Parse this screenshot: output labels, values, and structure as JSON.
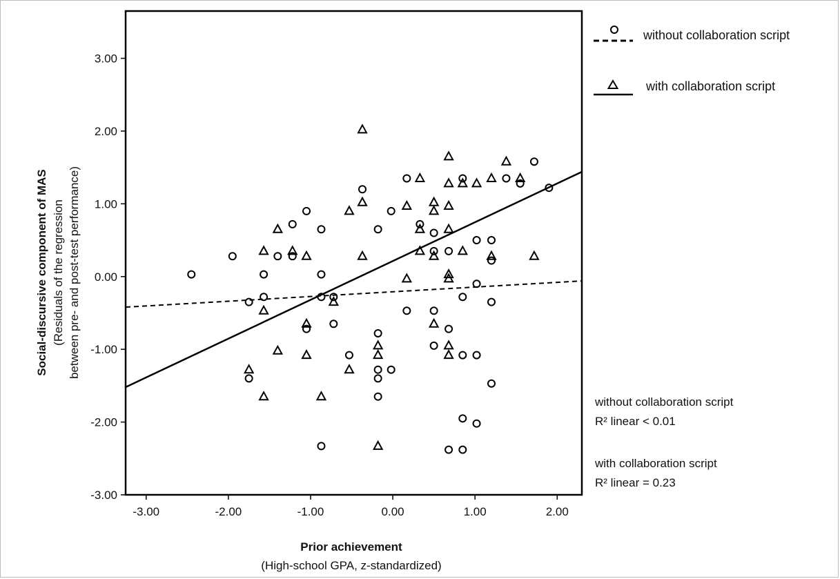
{
  "chart_data": {
    "type": "scatter",
    "xlabel": "Prior achievement",
    "xlabel_sub": "(High-school GPA, z-standardized)",
    "ylabel": "Social-discursive component of MAS",
    "ylabel_sub1": "(Residuals of the regression",
    "ylabel_sub2": "between pre- and post-test performance)",
    "xlim": [
      -3.25,
      2.3
    ],
    "ylim": [
      -3.0,
      3.65
    ],
    "x_ticks": [
      {
        "value": -3.0,
        "label": "-3.00"
      },
      {
        "value": -2.0,
        "label": "-2.00"
      },
      {
        "value": -1.0,
        "label": "-1.00"
      },
      {
        "value": 0.0,
        "label": "0.00"
      },
      {
        "value": 1.0,
        "label": "1.00"
      },
      {
        "value": 2.0,
        "label": "2.00"
      }
    ],
    "y_ticks": [
      {
        "value": -3.0,
        "label": "-3.00"
      },
      {
        "value": -2.0,
        "label": "-2.00"
      },
      {
        "value": -1.0,
        "label": "-1.00"
      },
      {
        "value": 0.0,
        "label": "0.00"
      },
      {
        "value": 1.0,
        "label": "1.00"
      },
      {
        "value": 2.0,
        "label": "2.00"
      },
      {
        "value": 3.0,
        "label": "3.00"
      }
    ],
    "grid": false,
    "legend_placement": "top-right outside",
    "series": [
      {
        "name": "without collaboration script",
        "marker": "circle",
        "line_style": "dashed",
        "fit": {
          "x0": -3.25,
          "y0": -0.42,
          "x1": 2.3,
          "y1": -0.06
        },
        "r2_label": "R² linear < 0.01",
        "points": [
          {
            "x": -2.45,
            "y": 0.03
          },
          {
            "x": -1.95,
            "y": 0.28
          },
          {
            "x": -1.75,
            "y": -0.35
          },
          {
            "x": -1.75,
            "y": -1.4
          },
          {
            "x": -1.57,
            "y": 0.03
          },
          {
            "x": -1.57,
            "y": -0.28
          },
          {
            "x": -1.4,
            "y": 0.28
          },
          {
            "x": -1.22,
            "y": 0.72
          },
          {
            "x": -1.22,
            "y": 0.28
          },
          {
            "x": -1.05,
            "y": 0.9
          },
          {
            "x": -1.05,
            "y": -0.72
          },
          {
            "x": -0.87,
            "y": 0.65
          },
          {
            "x": -0.87,
            "y": 0.03
          },
          {
            "x": -0.87,
            "y": -0.28
          },
          {
            "x": -0.87,
            "y": -2.33
          },
          {
            "x": -0.72,
            "y": -0.28
          },
          {
            "x": -0.72,
            "y": -0.65
          },
          {
            "x": -0.53,
            "y": -1.08
          },
          {
            "x": -0.37,
            "y": 1.2
          },
          {
            "x": -0.18,
            "y": 0.65
          },
          {
            "x": -0.18,
            "y": -0.78
          },
          {
            "x": -0.18,
            "y": -1.28
          },
          {
            "x": -0.18,
            "y": -1.4
          },
          {
            "x": -0.18,
            "y": -1.65
          },
          {
            "x": -0.02,
            "y": 0.9
          },
          {
            "x": -0.02,
            "y": -1.28
          },
          {
            "x": 0.17,
            "y": 1.35
          },
          {
            "x": 0.17,
            "y": -0.47
          },
          {
            "x": 0.33,
            "y": 0.72
          },
          {
            "x": 0.5,
            "y": 0.6
          },
          {
            "x": 0.5,
            "y": 0.35
          },
          {
            "x": 0.5,
            "y": -0.47
          },
          {
            "x": 0.5,
            "y": -0.95
          },
          {
            "x": 0.68,
            "y": 0.35
          },
          {
            "x": 0.68,
            "y": -0.72
          },
          {
            "x": 0.68,
            "y": -2.38
          },
          {
            "x": 0.85,
            "y": 1.35
          },
          {
            "x": 0.85,
            "y": -0.28
          },
          {
            "x": 0.85,
            "y": -1.08
          },
          {
            "x": 0.85,
            "y": -1.95
          },
          {
            "x": 0.85,
            "y": -2.38
          },
          {
            "x": 1.02,
            "y": 0.5
          },
          {
            "x": 1.02,
            "y": -0.1
          },
          {
            "x": 1.02,
            "y": -1.08
          },
          {
            "x": 1.02,
            "y": -2.02
          },
          {
            "x": 1.2,
            "y": 0.5
          },
          {
            "x": 1.2,
            "y": 0.22
          },
          {
            "x": 1.2,
            "y": -0.35
          },
          {
            "x": 1.2,
            "y": -1.47
          },
          {
            "x": 1.38,
            "y": 1.35
          },
          {
            "x": 1.55,
            "y": 1.28
          },
          {
            "x": 1.72,
            "y": 1.58
          },
          {
            "x": 1.9,
            "y": 1.22
          }
        ]
      },
      {
        "name": "with collaboration script",
        "marker": "triangle",
        "line_style": "solid",
        "fit": {
          "x0": -3.25,
          "y0": -1.52,
          "x1": 2.3,
          "y1": 1.44
        },
        "r2_label": "R² linear = 0.23",
        "points": [
          {
            "x": -1.75,
            "y": -1.28
          },
          {
            "x": -1.57,
            "y": 0.35
          },
          {
            "x": -1.57,
            "y": -0.47
          },
          {
            "x": -1.57,
            "y": -1.65
          },
          {
            "x": -1.4,
            "y": 0.65
          },
          {
            "x": -1.4,
            "y": -1.02
          },
          {
            "x": -1.22,
            "y": 0.35
          },
          {
            "x": -1.05,
            "y": 0.28
          },
          {
            "x": -1.05,
            "y": -0.65
          },
          {
            "x": -1.05,
            "y": -1.08
          },
          {
            "x": -0.87,
            "y": -1.65
          },
          {
            "x": -0.72,
            "y": -0.35
          },
          {
            "x": -0.53,
            "y": 0.9
          },
          {
            "x": -0.53,
            "y": -1.28
          },
          {
            "x": -0.37,
            "y": 2.02
          },
          {
            "x": -0.37,
            "y": 1.02
          },
          {
            "x": -0.37,
            "y": 0.28
          },
          {
            "x": -0.18,
            "y": -0.95
          },
          {
            "x": -0.18,
            "y": -1.08
          },
          {
            "x": -0.18,
            "y": -2.33
          },
          {
            "x": 0.17,
            "y": 0.97
          },
          {
            "x": 0.17,
            "y": -0.03
          },
          {
            "x": 0.33,
            "y": 1.35
          },
          {
            "x": 0.33,
            "y": 0.65
          },
          {
            "x": 0.33,
            "y": 0.35
          },
          {
            "x": 0.5,
            "y": 1.02
          },
          {
            "x": 0.5,
            "y": 0.9
          },
          {
            "x": 0.5,
            "y": 0.28
          },
          {
            "x": 0.5,
            "y": -0.65
          },
          {
            "x": 0.68,
            "y": 1.65
          },
          {
            "x": 0.68,
            "y": 1.28
          },
          {
            "x": 0.68,
            "y": 0.97
          },
          {
            "x": 0.68,
            "y": 0.65
          },
          {
            "x": 0.68,
            "y": 0.03
          },
          {
            "x": 0.68,
            "y": -0.03
          },
          {
            "x": 0.68,
            "y": -0.95
          },
          {
            "x": 0.68,
            "y": -1.08
          },
          {
            "x": 0.85,
            "y": 1.28
          },
          {
            "x": 0.85,
            "y": 0.35
          },
          {
            "x": 1.02,
            "y": 1.28
          },
          {
            "x": 1.2,
            "y": 1.35
          },
          {
            "x": 1.2,
            "y": 0.28
          },
          {
            "x": 1.38,
            "y": 1.58
          },
          {
            "x": 1.55,
            "y": 1.35
          },
          {
            "x": 1.72,
            "y": 0.28
          }
        ]
      }
    ],
    "r2_annotations": [
      {
        "line1": "without collaboration script",
        "line2": "R² linear < 0.01"
      },
      {
        "line1": "with collaboration script",
        "line2": "R² linear = 0.23"
      }
    ]
  }
}
